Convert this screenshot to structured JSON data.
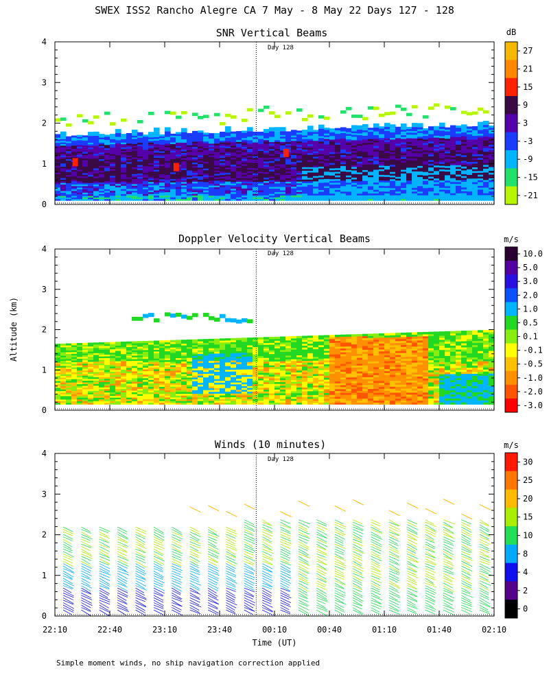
{
  "figure": {
    "title": "SWEX ISS2 Rancho Alegre CA   7 May -  8 May 22 Days 127 - 128",
    "ylabel": "Altitude (km)",
    "xlabel": "Time (UT)",
    "footnote": "Simple moment winds, no ship navigation correction applied",
    "day_marker": "Day 128",
    "x_ticks": [
      "22:10",
      "22:40",
      "23:10",
      "23:40",
      "00:10",
      "00:40",
      "01:10",
      "01:40",
      "02:10"
    ],
    "y_ticks": [
      "0",
      "1",
      "2",
      "3",
      "4"
    ]
  },
  "chart_data": [
    {
      "type": "heatmap",
      "title": "SNR Vertical Beams",
      "unit": "dB",
      "xlabel": "",
      "ylabel": "Altitude (km)",
      "xlim": [
        "22:10",
        "02:10"
      ],
      "ylim": [
        0,
        4
      ],
      "colorbar_labels": [
        "27",
        "21",
        "15",
        "9",
        "3",
        "-3",
        "-9",
        "-15",
        "-21"
      ],
      "colors": [
        "#f5b800",
        "#ff8800",
        "#ff2200",
        "#3a0a45",
        "#5500a8",
        "#1b3cff",
        "#00b4ff",
        "#22e06a",
        "#b8f500"
      ],
      "data_top_km": 1.7,
      "sparse_echo_top_km": 2.6
    },
    {
      "type": "heatmap",
      "title": "Doppler Velocity Vertical Beams",
      "unit": "m/s",
      "xlabel": "",
      "ylabel": "Altitude (km)",
      "xlim": [
        "22:10",
        "02:10"
      ],
      "ylim": [
        0,
        4
      ],
      "colorbar_labels": [
        "10.0",
        "5.0",
        "3.0",
        "2.0",
        "1.0",
        "0.5",
        "0.1",
        "-0.1",
        "-0.5",
        "-1.0",
        "-2.0",
        "-3.0"
      ],
      "colors": [
        "#2a0030",
        "#5200a0",
        "#2a10e0",
        "#0a50ff",
        "#00b4ff",
        "#22d822",
        "#88ee11",
        "#ffff00",
        "#ffc000",
        "#ff9000",
        "#ff5500",
        "#ff0000"
      ],
      "data_top_km": 2.0
    },
    {
      "type": "scatter",
      "title": "Winds (10 minutes)",
      "unit": "m/s",
      "xlabel": "Time (UT)",
      "ylabel": "Altitude (km)",
      "xlim": [
        "22:10",
        "02:10"
      ],
      "ylim": [
        0,
        4
      ],
      "colorbar_labels": [
        "30",
        "25",
        "20",
        "15",
        "10",
        "8",
        "4",
        "2",
        "0"
      ],
      "colors": [
        "#ff1a00",
        "#ff7700",
        "#ffbb00",
        "#aaee00",
        "#22dd55",
        "#00aaff",
        "#1010ee",
        "#550088",
        "#000000"
      ],
      "profile_times": [
        "22:10",
        "22:20",
        "22:30",
        "22:40",
        "22:50",
        "23:00",
        "23:10",
        "23:20",
        "23:30",
        "23:40",
        "23:50",
        "00:00",
        "00:10",
        "00:20",
        "00:30",
        "00:40",
        "00:50",
        "01:00",
        "01:10",
        "01:20",
        "01:30",
        "01:40",
        "01:50",
        "02:00"
      ]
    }
  ]
}
